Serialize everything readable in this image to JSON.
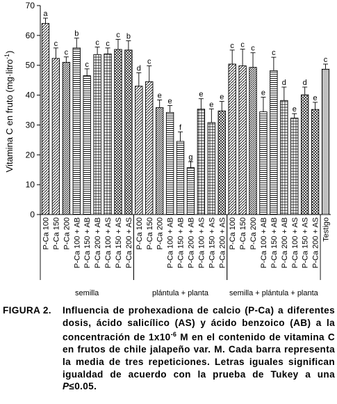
{
  "chart_data": {
    "type": "bar",
    "ylabel": "Vitamina C en fruto (mg·litro",
    "ylabel_sup": "-1",
    "ylabel_close": ")",
    "ylim": [
      0,
      70
    ],
    "yticks": [
      0,
      10,
      20,
      30,
      40,
      50,
      60,
      70
    ],
    "grid": false,
    "categories": [
      "P-Ca 100",
      "P-Ca 150",
      "P-Ca 200",
      "P-Ca 100 + AB",
      "P-Ca 150 + AB",
      "P-Ca 200 + AB",
      "P-Ca 100 + AS",
      "P-Ca 150 + AS",
      "P-Ca 200 + AS",
      "P-Ca 100",
      "P-Ca 150",
      "P-Ca 200",
      "P-Ca 100 + AB",
      "P-Ca 150 + AB",
      "P-Ca 200 + AB",
      "P-Ca 100 + AS",
      "P-Ca 150 + AS",
      "P-Ca 200 + AS",
      "P-Ca 100",
      "P-Ca 150",
      "P-Ca 200",
      "P-Ca 100 + AB",
      "P-Ca 150 + AB",
      "P-Ca 200 + AB",
      "P-Ca 100 + AS",
      "P-Ca 150 + AS",
      "P-Ca 200 + AS",
      "Testigo"
    ],
    "values": [
      64,
      52.3,
      51,
      55.8,
      46.5,
      53.6,
      53.8,
      55.3,
      55.1,
      43,
      44.5,
      35.8,
      34.2,
      24.5,
      15.7,
      35.3,
      30.8,
      34.7,
      50.4,
      49.8,
      49.3,
      34.4,
      48.2,
      38.2,
      32.3,
      40.1,
      35.2,
      48.7
    ],
    "errors": [
      1.8,
      3.5,
      1.8,
      3.3,
      2.3,
      2.5,
      2.0,
      3.4,
      3.1,
      4.5,
      5.3,
      2.6,
      2.3,
      3.2,
      2.0,
      3.5,
      4.6,
      3.2,
      4.7,
      5.6,
      4.9,
      4.9,
      4.5,
      4.5,
      1.5,
      2.6,
      2.4,
      1.7
    ],
    "letters": [
      "a",
      "c",
      "c",
      "b",
      "c",
      "c",
      "c",
      "c",
      "b",
      "d",
      "c",
      "e",
      "e",
      "f",
      "g",
      "e",
      "e",
      "e",
      "c",
      "c",
      "c",
      "e",
      "c",
      "d",
      "e",
      "d",
      "e",
      "c"
    ],
    "patterns": [
      "diag",
      "diag",
      "hatch",
      "hlines",
      "hlines",
      "cross",
      "cross",
      "xhatch",
      "xhatch",
      "diag",
      "diag",
      "hatch",
      "hlines",
      "hlines",
      "hlines",
      "cross",
      "cross",
      "xhatch",
      "diag",
      "diag",
      "hatch",
      "hlines",
      "hlines",
      "cross",
      "cross",
      "xhatch",
      "xhatch",
      "dots"
    ],
    "groups": [
      {
        "label": "semilla",
        "start": 0,
        "end": 8
      },
      {
        "label": "plántula + planta",
        "start": 9,
        "end": 17
      },
      {
        "label": "semilla + plántula + planta",
        "start": 18,
        "end": 26
      }
    ]
  },
  "caption": {
    "label": "FIGURA 2.",
    "text_before": "Influencia de prohexadiona de calcio (P-Ca) a diferentes dosis, ácido salicílico (AS) y ácido benzoico (AB) a la concentración de 1x10",
    "exponent": "-6",
    "text_middle": " M en el contenido de vitamina C en frutos de chile jalapeño var. M. Cada barra representa la media de tres repeticiones. Letras iguales significan igualdad de acuerdo con la prueba de Tukey a una ",
    "p_symbol": "P",
    "text_after": "≤0.05."
  }
}
